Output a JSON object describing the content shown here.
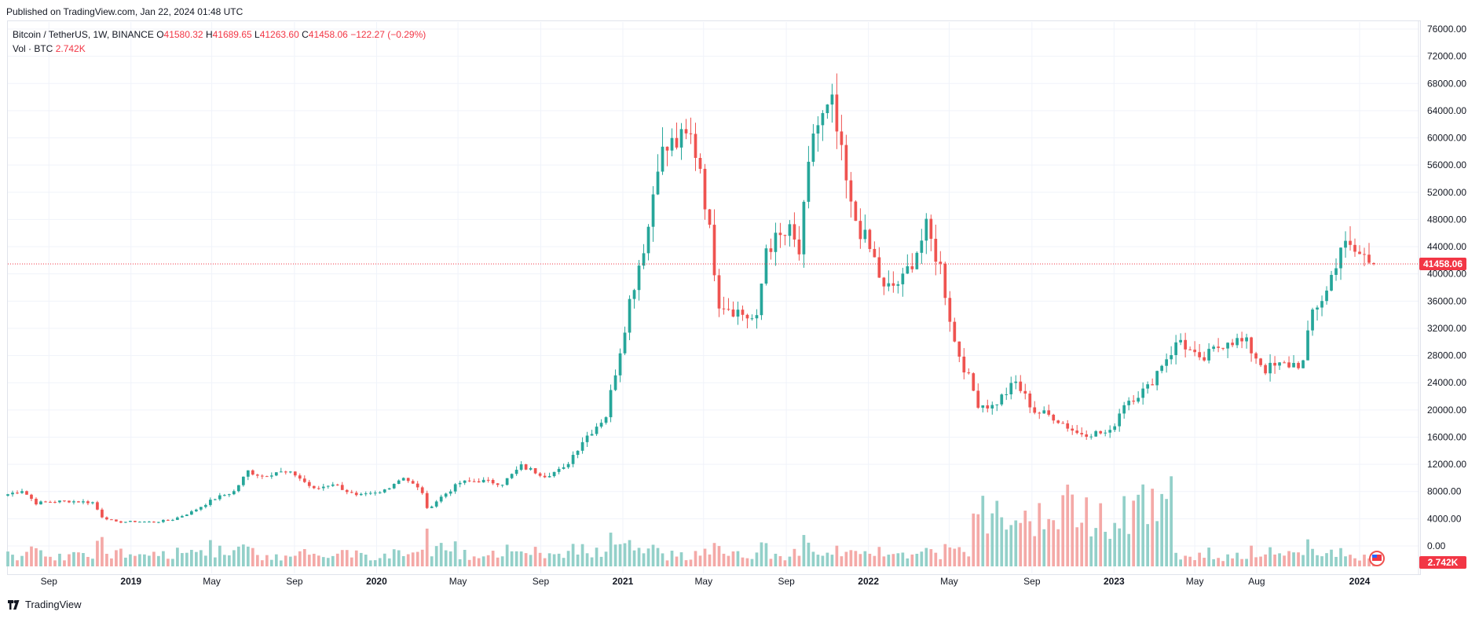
{
  "published": "Published on TradingView.com, Jan 22, 2024 01:48 UTC",
  "legend": {
    "symbol": "Bitcoin / TetherUS, 1W, BINANCE",
    "o_label": "O",
    "o": "41580.32",
    "h_label": "H",
    "h": "41689.65",
    "l_label": "L",
    "l": "41263.60",
    "c_label": "C",
    "c": "41458.06",
    "change": "−122.27 (−0.29%)",
    "vol_label": "Vol · BTC",
    "vol": "2.742K"
  },
  "footer": {
    "brand": "TradingView",
    "logo_icon": "tradingview-logo-icon"
  },
  "colors": {
    "up": "#26a69a",
    "down": "#ef5350",
    "vol_up": "#93d0c9",
    "vol_down": "#f4a9a7",
    "last_price": "#f23645"
  },
  "chart_data": {
    "type": "candlestick",
    "symbol": "Bitcoin / TetherUS",
    "interval": "1W",
    "exchange": "BINANCE",
    "ylim": [
      0,
      76000
    ],
    "y_ticks": [
      "76000.00",
      "72000.00",
      "68000.00",
      "64000.00",
      "60000.00",
      "56000.00",
      "52000.00",
      "48000.00",
      "44000.00",
      "40000.00",
      "36000.00",
      "32000.00",
      "28000.00",
      "24000.00",
      "20000.00",
      "16000.00",
      "12000.00",
      "8000.00",
      "4000.00",
      "0.00"
    ],
    "x_ticks": [
      "Sep",
      "2019",
      "May",
      "Sep",
      "2020",
      "May",
      "Sep",
      "2021",
      "May",
      "Sep",
      "2022",
      "May",
      "Sep",
      "2023",
      "May",
      "Aug",
      "2024"
    ],
    "x_tick_dates": [
      "2018-09-01",
      "2019-01-01",
      "2019-05-01",
      "2019-09-01",
      "2020-01-01",
      "2020-05-01",
      "2020-09-01",
      "2021-01-01",
      "2021-05-01",
      "2021-09-01",
      "2022-01-01",
      "2022-05-01",
      "2022-09-01",
      "2023-01-01",
      "2023-05-01",
      "2023-08-01",
      "2024-01-01"
    ],
    "last_price_label": "41458.06",
    "last_volume_label": "2.742K",
    "weekly_close_path": [
      [
        "2018-07-02",
        7600
      ],
      [
        "2018-07-23",
        8200
      ],
      [
        "2018-08-13",
        6300
      ],
      [
        "2018-09-03",
        6500
      ],
      [
        "2018-10-01",
        6600
      ],
      [
        "2018-11-05",
        6400
      ],
      [
        "2018-11-19",
        4300
      ],
      [
        "2018-12-10",
        3500
      ],
      [
        "2019-01-07",
        3600
      ],
      [
        "2019-02-04",
        3500
      ],
      [
        "2019-03-04",
        3900
      ],
      [
        "2019-04-01",
        5000
      ],
      [
        "2019-05-06",
        7000
      ],
      [
        "2019-06-03",
        8000
      ],
      [
        "2019-06-24",
        11000
      ],
      [
        "2019-07-15",
        10300
      ],
      [
        "2019-08-05",
        10900
      ],
      [
        "2019-09-02",
        10500
      ],
      [
        "2019-09-30",
        8300
      ],
      [
        "2019-10-28",
        9200
      ],
      [
        "2019-12-02",
        7300
      ],
      [
        "2020-01-06",
        7800
      ],
      [
        "2020-02-10",
        10200
      ],
      [
        "2020-03-09",
        7900
      ],
      [
        "2020-03-16",
        5400
      ],
      [
        "2020-04-06",
        7200
      ],
      [
        "2020-05-04",
        9300
      ],
      [
        "2020-06-01",
        9600
      ],
      [
        "2020-07-06",
        9200
      ],
      [
        "2020-08-03",
        11700
      ],
      [
        "2020-09-07",
        10400
      ],
      [
        "2020-10-05",
        11300
      ],
      [
        "2020-11-02",
        15500
      ],
      [
        "2020-12-07",
        19200
      ],
      [
        "2020-12-28",
        29000
      ],
      [
        "2021-01-11",
        36000
      ],
      [
        "2021-02-08",
        47000
      ],
      [
        "2021-02-22",
        57000
      ],
      [
        "2021-03-15",
        59000
      ],
      [
        "2021-04-12",
        60000
      ],
      [
        "2021-04-26",
        56000
      ],
      [
        "2021-05-10",
        46000
      ],
      [
        "2021-05-24",
        36000
      ],
      [
        "2021-06-21",
        34500
      ],
      [
        "2021-07-19",
        33000
      ],
      [
        "2021-08-02",
        44000
      ],
      [
        "2021-09-06",
        46000
      ],
      [
        "2021-09-20",
        43000
      ],
      [
        "2021-10-11",
        61000
      ],
      [
        "2021-11-08",
        64500
      ],
      [
        "2021-11-22",
        57000
      ],
      [
        "2021-12-06",
        49500
      ],
      [
        "2022-01-10",
        42000
      ],
      [
        "2022-01-24",
        37500
      ],
      [
        "2022-02-21",
        39000
      ],
      [
        "2022-03-28",
        46500
      ],
      [
        "2022-04-18",
        41000
      ],
      [
        "2022-05-09",
        30000
      ],
      [
        "2022-06-13",
        21000
      ],
      [
        "2022-07-04",
        20500
      ],
      [
        "2022-08-08",
        24000
      ],
      [
        "2022-09-05",
        19800
      ],
      [
        "2022-10-03",
        19000
      ],
      [
        "2022-11-07",
        16600
      ],
      [
        "2022-12-26",
        16600
      ],
      [
        "2023-01-16",
        21100
      ],
      [
        "2023-02-20",
        23200
      ],
      [
        "2023-03-13",
        26900
      ],
      [
        "2023-04-10",
        30300
      ],
      [
        "2023-05-08",
        26900
      ],
      [
        "2023-06-19",
        30500
      ],
      [
        "2023-07-17",
        29700
      ],
      [
        "2023-08-14",
        26000
      ],
      [
        "2023-09-11",
        26600
      ],
      [
        "2023-10-09",
        26900
      ],
      [
        "2023-10-23",
        34500
      ],
      [
        "2023-11-13",
        37400
      ],
      [
        "2023-12-04",
        44200
      ],
      [
        "2024-01-08",
        42500
      ],
      [
        "2024-01-22",
        41458
      ]
    ]
  }
}
